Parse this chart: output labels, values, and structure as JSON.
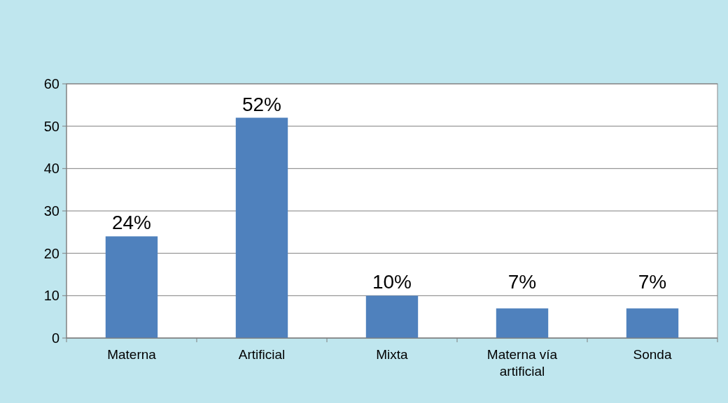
{
  "chart_data": {
    "type": "bar",
    "categories": [
      "Materna",
      "Artificial",
      "Mixta",
      "Materna vía artificial",
      "Sonda"
    ],
    "values": [
      24,
      52,
      10,
      7,
      7
    ],
    "color": "#4f81bd",
    "value_labels": [
      "24%",
      "52%",
      "10%",
      "7%",
      "7%"
    ],
    "ylim": [
      0,
      60
    ],
    "yticks": [
      0,
      10,
      20,
      30,
      40,
      50,
      60
    ],
    "grid": "y"
  }
}
